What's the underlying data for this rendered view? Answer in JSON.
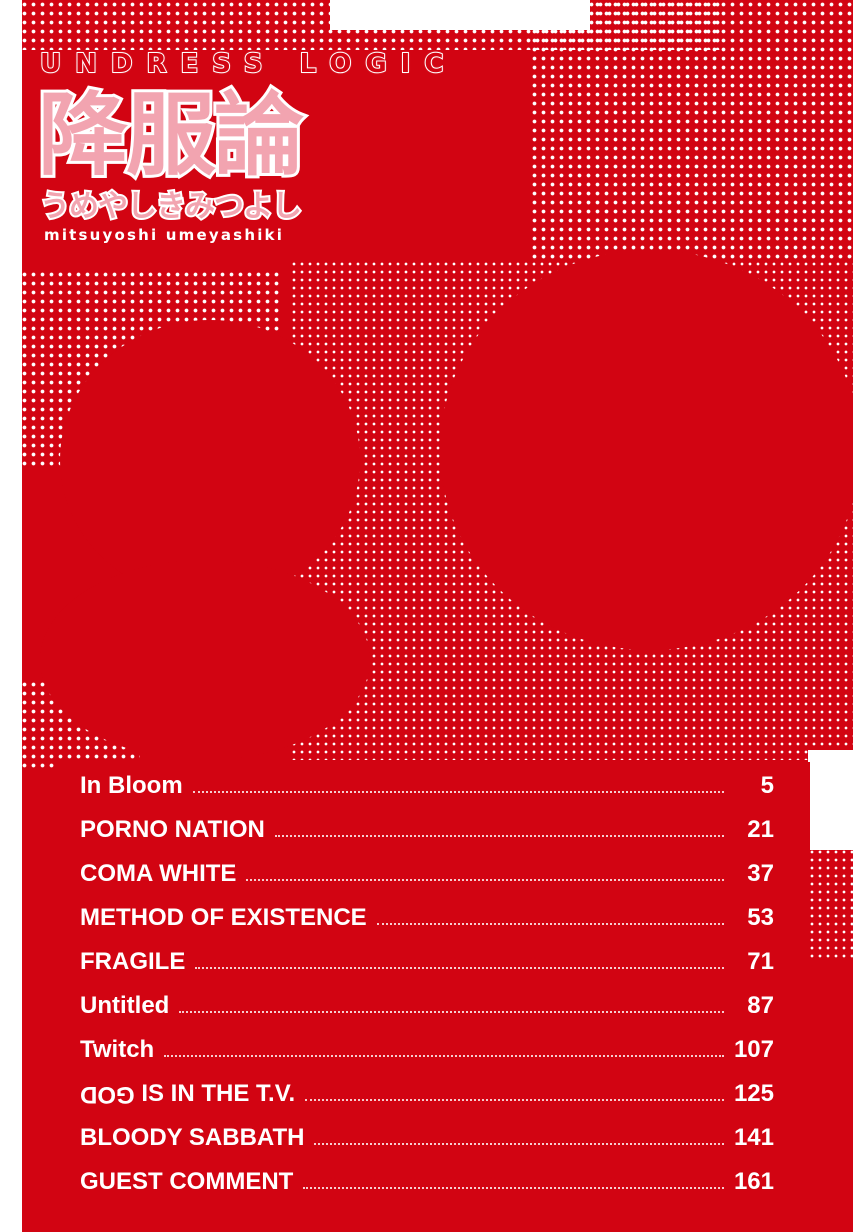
{
  "cover": {
    "series_title": "UNDRESS LOGIC",
    "title_jp": "降服論",
    "author_jp": "うめやしきみつよし",
    "author_en": "mitsuyoshi umeyashiki"
  },
  "toc": [
    {
      "title": "In Bloom",
      "page": "5"
    },
    {
      "title": "PORNO NATION",
      "page": "21"
    },
    {
      "title": "COMA WHITE",
      "page": "37"
    },
    {
      "title": "METHOD OF EXISTENCE",
      "page": "53"
    },
    {
      "title": "FRAGILE",
      "page": "71"
    },
    {
      "title": "Untitled",
      "page": "87"
    },
    {
      "title": "Twitch",
      "page": "107"
    },
    {
      "title_flipped": "GOD",
      "title": " IS IN THE T.V.",
      "page": "125"
    },
    {
      "title": "BLOODY SABBATH",
      "page": "141"
    },
    {
      "title": "GUEST COMMENT",
      "page": "161"
    }
  ],
  "colors": {
    "background": "#d20412",
    "title_fill": "#f2a4b0",
    "text": "#ffffff"
  }
}
